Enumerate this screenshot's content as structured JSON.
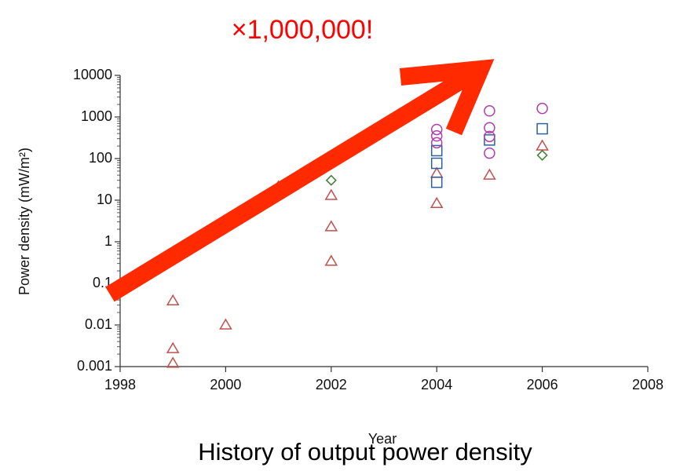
{
  "chart_data": {
    "type": "scatter",
    "title": "×1,000,000!",
    "caption": "History of output power density",
    "x_label": "Year",
    "y_label": "Power density (mW/m²)",
    "log_y": true,
    "xlim": [
      1998,
      2008
    ],
    "xticks": [
      1998,
      2000,
      2002,
      2004,
      2006,
      2008
    ],
    "ylim": [
      0.001,
      10000
    ],
    "yticks": [
      0.001,
      0.01,
      0.1,
      1,
      10,
      100,
      1000,
      10000
    ],
    "series": [
      {
        "marker": "triangle",
        "color": "#c0504d",
        "x": [
          1999,
          1999,
          1999,
          2000,
          2001,
          2002,
          2002,
          2002,
          2004,
          2004,
          2005,
          2006
        ],
        "values": [
          0.038,
          0.0027,
          0.0012,
          0.01,
          21,
          13,
          2.3,
          0.34,
          8.3,
          44,
          40,
          200
        ]
      },
      {
        "marker": "diamond",
        "color": "#3f7f35",
        "x": [
          2002,
          2006
        ],
        "values": [
          30,
          120
        ]
      },
      {
        "marker": "square",
        "color": "#2e5fa3",
        "x": [
          2004,
          2004,
          2004,
          2005,
          2006
        ],
        "values": [
          27,
          77,
          155,
          280,
          520
        ]
      },
      {
        "marker": "circle",
        "color": "#b03cb0",
        "x": [
          2004,
          2004,
          2004,
          2005,
          2005,
          2005,
          2005,
          2006
        ],
        "values": [
          500,
          240,
          350,
          1400,
          550,
          135,
          340,
          1600
        ]
      }
    ]
  }
}
